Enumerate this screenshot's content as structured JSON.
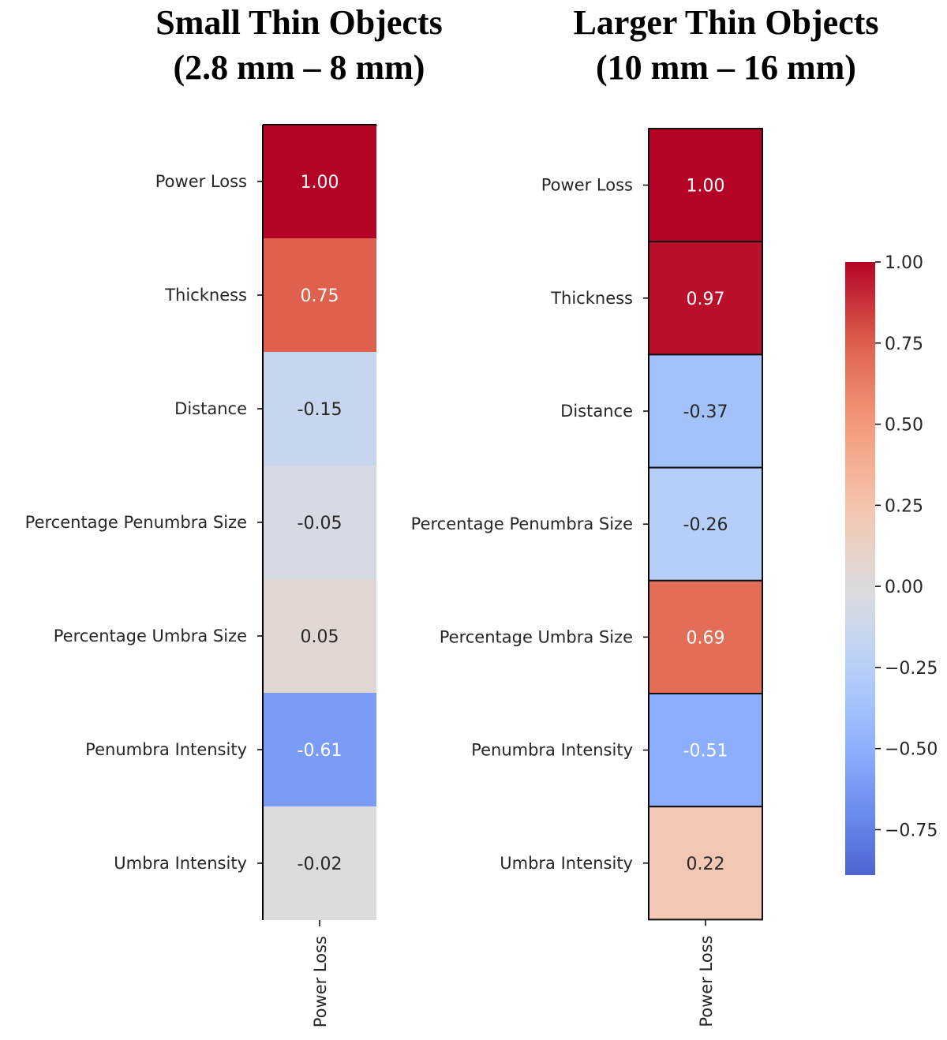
{
  "chart_data": [
    {
      "type": "heatmap",
      "title_line1": "Small Thin Objects",
      "title_line2": "(2.8 mm – 8 mm)",
      "row_labels": [
        "Power Loss",
        "Thickness",
        "Distance ",
        "Percentage Penumbra Size",
        "Percentage Umbra Size",
        "Penumbra Intensity",
        "Umbra Intensity"
      ],
      "column_labels": [
        "Power Loss"
      ],
      "values": [
        1.0,
        0.75,
        -0.15,
        -0.05,
        0.05,
        -0.61,
        -0.02
      ],
      "value_format": "2 decimals",
      "cell_borders": false
    },
    {
      "type": "heatmap",
      "title_line1": "Larger Thin Objects",
      "title_line2": "(10 mm – 16 mm)",
      "row_labels": [
        "Power Loss",
        "Thickness",
        "Distance ",
        "Percentage Penumbra Size",
        "Percentage Umbra Size",
        "Penumbra Intensity",
        "Umbra Intensity"
      ],
      "column_labels": [
        "Power Loss"
      ],
      "values": [
        1.0,
        0.97,
        -0.37,
        -0.26,
        0.69,
        -0.51,
        0.22
      ],
      "value_format": "2 decimals",
      "cell_borders": true
    }
  ],
  "colorbar": {
    "colormap": "coolwarm",
    "range": [
      -0.89,
      1.0
    ],
    "ticks": [
      1.0,
      0.75,
      0.5,
      0.25,
      0.0,
      -0.25,
      -0.5,
      -0.75
    ],
    "tick_labels": [
      "1.00",
      "0.75",
      "0.50",
      "0.25",
      "0.00",
      "−0.25",
      "−0.50",
      "−0.75"
    ]
  }
}
